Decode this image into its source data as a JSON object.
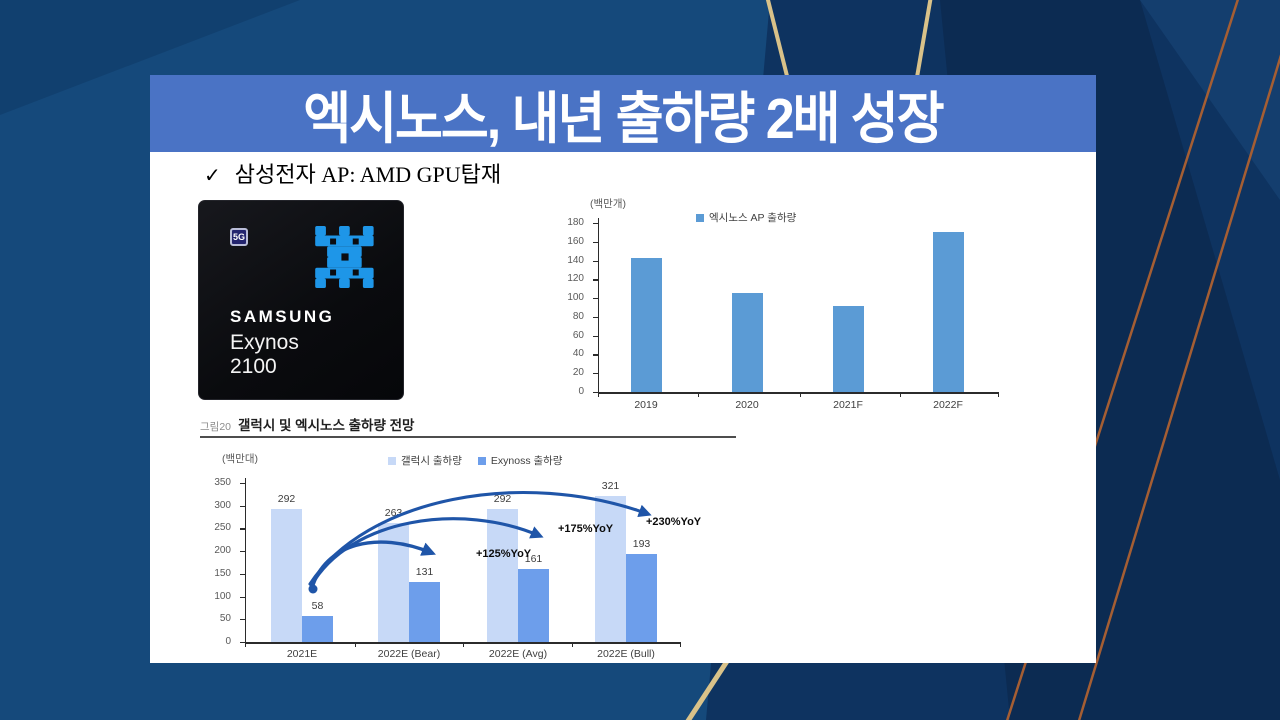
{
  "slide": {
    "title": "엑시노스, 내년 출하량 2배 성장",
    "bullet": {
      "check": "✓",
      "text": "삼성전자 AP: AMD GPU탑재"
    }
  },
  "chip": {
    "badge": "5G",
    "brand": "SAMSUNG",
    "model_name": "Exynos",
    "model_number": "2100"
  },
  "figure": {
    "tag": "그림20",
    "title": "갤럭시 및 엑시노스 출하량 전망"
  },
  "chart_data": [
    {
      "id": "exynos-ap-shipments",
      "type": "bar",
      "unit_label": "(백만개)",
      "categories": [
        "2019",
        "2020",
        "2021F",
        "2022F"
      ],
      "series": [
        {
          "name": "엑시노스 AP 출하량",
          "color": "#5B9BD5",
          "values": [
            143,
            105,
            92,
            170
          ]
        }
      ],
      "ylim": [
        0,
        180
      ],
      "ytick_step": 20,
      "grid": false,
      "legend_position": "top",
      "show_value_labels": false
    },
    {
      "id": "galaxy-exynos-forecast",
      "type": "bar",
      "unit_label": "(백만대)",
      "categories": [
        "2021E",
        "2022E (Bear)",
        "2022E (Avg)",
        "2022E (Bull)"
      ],
      "series": [
        {
          "name": "갤럭시 출하량",
          "color": "#C7D9F7",
          "values": [
            292,
            263,
            292,
            321
          ]
        },
        {
          "name": "Exynoss 출하량",
          "color": "#6D9EEB",
          "values": [
            58,
            131,
            161,
            193
          ]
        }
      ],
      "ylim": [
        0,
        350
      ],
      "ytick_step": 50,
      "grid": false,
      "legend_position": "top",
      "show_value_labels": true,
      "annotations": [
        "+125%YoY",
        "+175%YoY",
        "+230%YoY"
      ]
    }
  ],
  "colors": {
    "banner": "#4A73C5",
    "slide_bg": "#15497B",
    "deco_dark": "#0E3360",
    "deco_darker": "#0C2B52",
    "deco_mid": "#143E6E",
    "deco_corner": "#11406F",
    "gold": "#D9C289",
    "copper": "#A55E33",
    "chip_bg": "#0B0C10",
    "logo_blue": "#1E96E8",
    "arrow": "#1F55A8"
  }
}
